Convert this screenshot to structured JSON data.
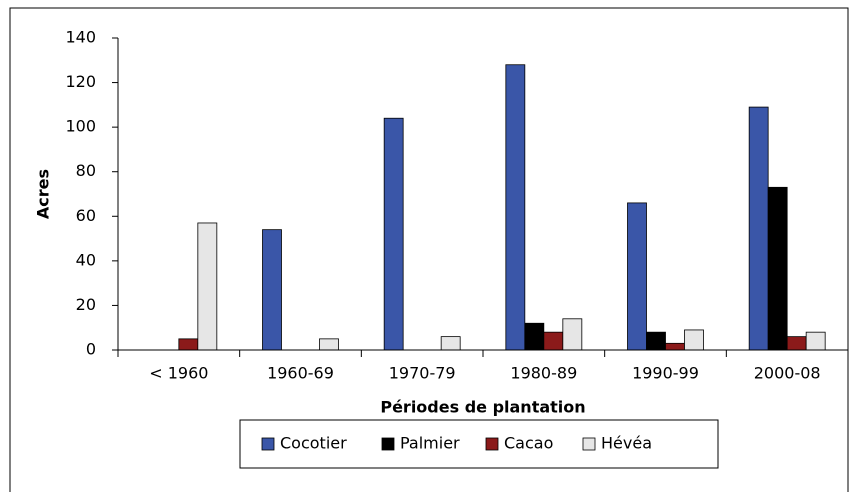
{
  "chart_data": {
    "type": "bar",
    "x_label": "Périodes de plantation",
    "y_label": "Acres",
    "categories": [
      "< 1960",
      "1960-69",
      "1970-79",
      "1980-89",
      "1990-99",
      "2000-08"
    ],
    "series": [
      {
        "name": "Cocotier",
        "color": "#3a56a8",
        "values": [
          0,
          54,
          104,
          128,
          66,
          109
        ]
      },
      {
        "name": "Palmier",
        "color": "#000000",
        "values": [
          0,
          0,
          0,
          12,
          8,
          73
        ]
      },
      {
        "name": "Cacao",
        "color": "#8b1a1a",
        "values": [
          5,
          0,
          0,
          8,
          3,
          6
        ]
      },
      {
        "name": "Hévéa",
        "color": "#e6e6e6",
        "values": [
          57,
          5,
          6,
          14,
          9,
          8
        ]
      }
    ],
    "ylim": [
      0,
      140
    ],
    "yticks": [
      0,
      20,
      40,
      60,
      80,
      100,
      120,
      140
    ],
    "legend": "bottom"
  }
}
